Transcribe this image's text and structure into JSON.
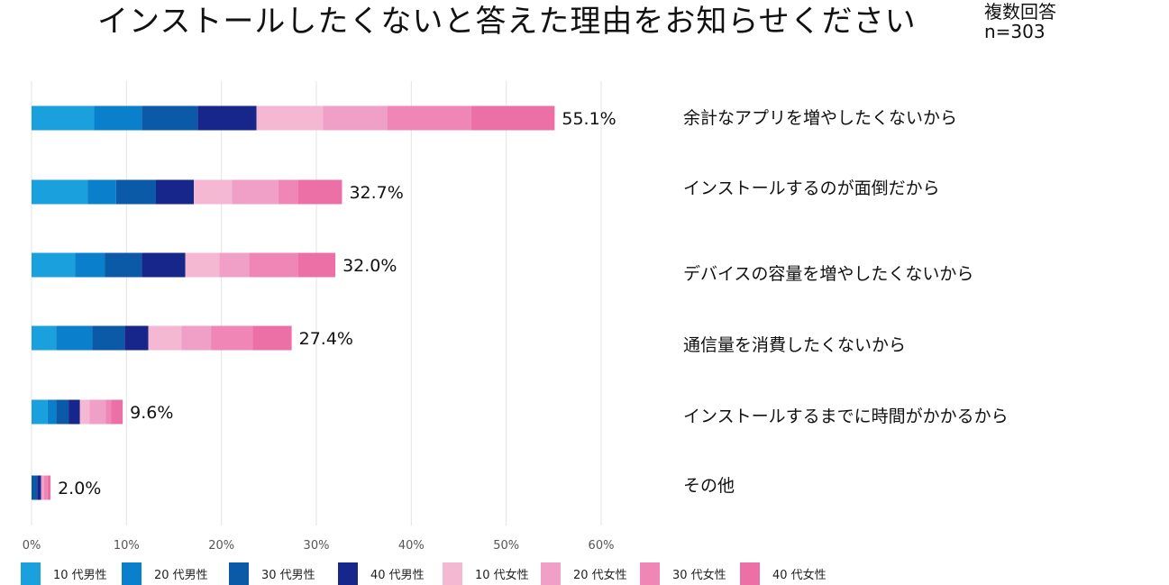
{
  "title": "インストールしたくないと答えた理由をお知らせください",
  "meta": {
    "multi": "複数回答",
    "n": "n=303"
  },
  "colors": {
    "grid": "#e3e3e3",
    "series": [
      "#1ba0de",
      "#0a7fcc",
      "#0a5aa8",
      "#16268a",
      "#f4b8d2",
      "#f09fc6",
      "#ef86b6",
      "#ec70a6"
    ]
  },
  "chart_data": {
    "type": "bar",
    "orientation": "horizontal",
    "stacked": true,
    "title": "インストールしたくないと答えた理由をお知らせください",
    "categories": [
      "余計なアプリを増やしたくないから",
      "インストールするのが面倒だから",
      "デバイスの容量を増やしたくないから",
      "通信量を消費したくないから",
      "インストールするまでに時間がかかるから",
      "その他"
    ],
    "totals": [
      55.1,
      32.7,
      32.0,
      27.4,
      9.6,
      2.0
    ],
    "total_labels": [
      "55.1%",
      "32.7%",
      "32.0%",
      "27.4%",
      "9.6%",
      "2.0%"
    ],
    "series": [
      {
        "name": "10 代男性",
        "values": [
          6.6,
          5.9,
          4.6,
          2.6,
          1.7,
          0.0
        ]
      },
      {
        "name": "20 代男性",
        "values": [
          5.0,
          3.0,
          3.1,
          3.8,
          0.9,
          0.0
        ]
      },
      {
        "name": "30 代男性",
        "values": [
          5.9,
          4.2,
          3.9,
          3.4,
          1.3,
          0.6
        ]
      },
      {
        "name": "40 代男性",
        "values": [
          6.2,
          4.0,
          4.6,
          2.5,
          1.2,
          0.4
        ]
      },
      {
        "name": "10 代女性",
        "values": [
          7.0,
          4.0,
          3.6,
          3.5,
          1.0,
          0.0
        ]
      },
      {
        "name": "20 代女性",
        "values": [
          6.8,
          4.9,
          3.1,
          3.1,
          1.7,
          0.3
        ]
      },
      {
        "name": "30 代女性",
        "values": [
          8.8,
          2.1,
          5.2,
          4.4,
          0.6,
          0.4
        ]
      },
      {
        "name": "40 代女性",
        "values": [
          8.8,
          4.6,
          3.9,
          4.1,
          1.2,
          0.3
        ]
      }
    ],
    "xlim": [
      0,
      60
    ],
    "xticks": [
      0,
      10,
      20,
      30,
      40,
      50,
      60
    ],
    "xtick_labels": [
      "0%",
      "10%",
      "20%",
      "30%",
      "40%",
      "50%",
      "60%"
    ],
    "legend_position": "bottom"
  }
}
